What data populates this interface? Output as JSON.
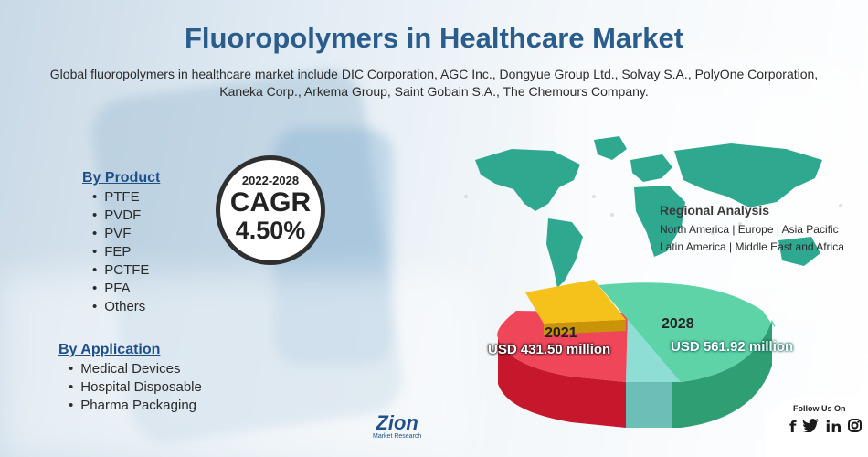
{
  "title": "Fluoropolymers in Healthcare Market",
  "subtitle": "Global fluoropolymers in healthcare market include DIC Corporation, AGC Inc., Dongyue Group Ltd., Solvay S.A., PolyOne Corporation, Kaneka Corp., Arkema Group, Saint Gobain S.A., The Chemours Company.",
  "cagr": {
    "years": "2022-2028",
    "label": "CAGR",
    "value": "4.50%"
  },
  "by_product": {
    "heading": "By Product",
    "items": [
      "PTFE",
      "PVDF",
      "PVF",
      "FEP",
      "PCTFE",
      "PFA",
      "Others"
    ]
  },
  "by_application": {
    "heading": "By Application",
    "items": [
      "Medical Devices",
      "Hospital Disposable",
      "Pharma Packaging"
    ]
  },
  "regional": {
    "heading": "Regional Analysis",
    "line1": "North America | Europe | Asia Pacific",
    "line2": "Latin America | Middle East and Africa"
  },
  "market": {
    "year_2021": "2021",
    "value_2021": "USD 431.50 million",
    "year_2028": "2028",
    "value_2028": "USD 561.92 million"
  },
  "colors": {
    "title": "#2a5d8c",
    "pie_green": "#5fd3a8",
    "pie_red": "#f0465a",
    "pie_yellow": "#f4c21a",
    "pie_teal": "#8fded6",
    "map": "#2ea88e"
  },
  "logo": {
    "name": "Zion",
    "tagline": "Market Research"
  },
  "social": {
    "label": "Follow Us On",
    "icons": [
      "facebook-icon",
      "twitter-icon",
      "linkedin-icon",
      "instagram-icon"
    ]
  }
}
